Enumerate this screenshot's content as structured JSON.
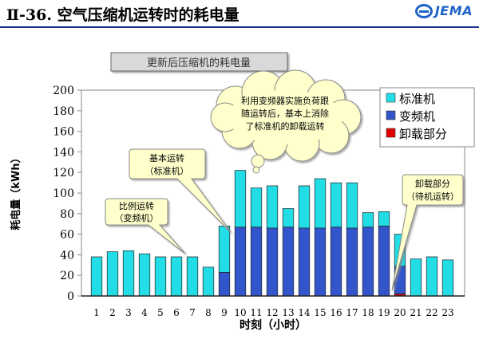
{
  "header": {
    "title": "Ⅱ-36. 空气压缩机运转时的耗电量",
    "logo_text": "JEMA",
    "accent_color": "#1f2f8c"
  },
  "chart_data": {
    "type": "bar",
    "stacked": true,
    "title": "更新后压缩机的耗电量",
    "xlabel": "时刻（小时）",
    "ylabel": "耗电量（kWh）",
    "ylim": [
      0,
      200
    ],
    "yticks": [
      0,
      20,
      40,
      60,
      80,
      100,
      120,
      140,
      160,
      180,
      200
    ],
    "categories": [
      "1",
      "2",
      "3",
      "4",
      "5",
      "6",
      "7",
      "8",
      "9",
      "10",
      "11",
      "12",
      "13",
      "14",
      "15",
      "16",
      "17",
      "18",
      "19",
      "20",
      "21",
      "22",
      "23"
    ],
    "tick_labels": [
      "1",
      "2",
      "3",
      "4",
      "5",
      "6",
      "7",
      "8",
      "9",
      "10",
      "11",
      "12",
      "13",
      "14",
      "15",
      "16",
      "17",
      "18",
      "19",
      "20",
      "21",
      "22",
      "23"
    ],
    "grid": false,
    "legend_position": "top-right",
    "series": [
      {
        "name": "卸载部分",
        "color": "#e00000",
        "values": [
          0,
          0,
          0,
          0,
          0,
          0,
          0,
          0,
          0,
          0,
          0,
          0,
          0,
          0,
          0,
          0,
          0,
          0,
          0,
          2,
          0,
          0,
          0
        ]
      },
      {
        "name": "变频机",
        "color": "#3355cc",
        "values": [
          0,
          0,
          0,
          0,
          0,
          0,
          0,
          0,
          23,
          67,
          67,
          66,
          67,
          66,
          66,
          67,
          66,
          67,
          68,
          27,
          0,
          0,
          0
        ]
      },
      {
        "name": "标准机",
        "color": "#22dde6",
        "values": [
          38,
          43,
          44,
          41,
          38,
          38,
          38,
          28,
          45,
          55,
          38,
          41,
          18,
          41,
          48,
          43,
          44,
          14,
          14,
          31,
          36,
          38,
          35
        ]
      }
    ],
    "legend_order": [
      "标准机",
      "变频机",
      "卸载部分"
    ],
    "annotations": [
      {
        "lines": [
          "比例运转",
          "（变频机）"
        ]
      },
      {
        "lines": [
          "基本运转",
          "（标准机）"
        ]
      },
      {
        "lines": [
          "利用变频器实施负荷跟",
          "随运转后，基本上消除",
          "了标准机的卸载运转"
        ]
      },
      {
        "lines": [
          "卸载部分",
          "（待机运转）"
        ]
      }
    ]
  }
}
